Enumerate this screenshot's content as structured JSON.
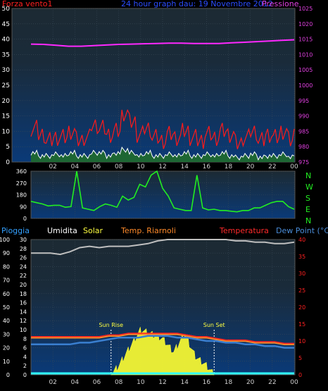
{
  "header": {
    "left_label": "Forza vento1",
    "title": "24 hour graph dau: 19 Novembre 2012",
    "right_label": "Pressione"
  },
  "colors": {
    "wind": "#ff1a1a",
    "gust_fill": "#ff1a1a",
    "avg_wind": "#ffffff",
    "wind_fill": "#1f6b2c",
    "pressure": "#ff28ff",
    "direction": "#22ee22",
    "humidity": "#bfbfbf",
    "temp_red": "#ff2020",
    "temp_orange": "#ff8a2a",
    "dew": "#3a7fd0",
    "solar": "#ffff30",
    "rain": "#30ffff",
    "title": "#2b4dff",
    "pressure_axis": "#e040e0",
    "wind_axis": "#ff2020",
    "dir_axis": "#22ee22",
    "left_axis": "#ffffff",
    "rain_label": "#33a0ff",
    "humidity_label": "#ffffff",
    "solar_label": "#ffff40",
    "temp_rian_label": "#ff8a2a",
    "temp_label": "#ff2a2a",
    "dew_label": "#4a8cd8"
  },
  "x_ticks": [
    "02",
    "04",
    "06",
    "08",
    "10",
    "12",
    "14",
    "16",
    "18",
    "20",
    "22",
    "00"
  ],
  "chart_data": [
    {
      "type": "line",
      "name": "wind-pressure",
      "y_left_label": "Forza vento1",
      "y_left_ticks": [
        "0",
        "5",
        "10",
        "15",
        "20",
        "25",
        "30",
        "35",
        "40",
        "45",
        "50"
      ],
      "y_left_lim": [
        0,
        50
      ],
      "y_right_label": "Pressione",
      "y_right_ticks": [
        "975",
        "980",
        "985",
        "990",
        "995",
        "1000",
        "1005",
        "1010",
        "1015",
        "1020",
        "1025"
      ],
      "y_right_lim": [
        975,
        1025
      ],
      "pressure": [
        1013.4,
        1013.3,
        1013.0,
        1012.7,
        1012.7,
        1012.9,
        1013.1,
        1013.3,
        1013.4,
        1013.5,
        1013.6,
        1013.7,
        1013.7,
        1013.6,
        1013.6,
        1013.6,
        1013.8,
        1014.0,
        1014.2,
        1014.4,
        1014.6,
        1014.8
      ],
      "wind_gust_max": [
        11,
        9,
        7,
        8,
        8,
        10,
        7,
        8,
        12,
        11,
        9,
        10,
        16,
        13,
        9,
        11,
        8,
        7,
        9,
        8,
        10,
        8,
        7,
        9,
        8,
        10,
        9,
        6,
        8,
        10,
        7,
        9,
        8,
        10,
        7,
        9
      ],
      "wind_avg": [
        3,
        2,
        2,
        2.5,
        2,
        3,
        2,
        2,
        3,
        3,
        2,
        3,
        4,
        3,
        2,
        3,
        2,
        2,
        2.5,
        2,
        3,
        2,
        2,
        2.5,
        2,
        3,
        2,
        1.5,
        2,
        2.5,
        1.5,
        2,
        2,
        2.5,
        1.5,
        2
      ]
    },
    {
      "type": "scatter",
      "name": "wind-direction",
      "y_left_ticks": [
        "0",
        "90",
        "180",
        "270",
        "360"
      ],
      "y_left_lim": [
        0,
        360
      ],
      "y_right_labels": [
        "N",
        "W",
        "S",
        "E",
        "N"
      ],
      "direction": [
        130,
        120,
        110,
        95,
        100,
        100,
        85,
        90,
        360,
        80,
        70,
        60,
        90,
        110,
        100,
        85,
        170,
        140,
        160,
        260,
        240,
        330,
        360,
        230,
        170,
        80,
        70,
        60,
        60,
        330,
        80,
        65,
        70,
        60,
        60,
        55,
        50,
        60,
        60,
        80,
        80,
        100,
        120,
        130,
        130,
        90,
        70
      ]
    },
    {
      "type": "area",
      "name": "humidity-temp-solar",
      "legend": [
        "Pioggia",
        "Umidita",
        "Solar",
        "Temp. Riarnoli",
        "Temperatura",
        "Dew Point (°C)"
      ],
      "y_left_ticks": [
        "0",
        "10",
        "20",
        "30",
        "40",
        "50",
        "60",
        "70",
        "80",
        "90",
        "100"
      ],
      "y_left_lim": [
        0,
        100
      ],
      "y_mid_ticks": [
        "0",
        "2",
        "4",
        "6",
        "8",
        "10",
        "12",
        "14",
        "16",
        "18",
        "20",
        "22",
        "24",
        "26",
        "28",
        "30"
      ],
      "y_mid_lim": [
        0,
        30
      ],
      "y_right_ticks": [
        "0",
        "5",
        "10",
        "15",
        "20",
        "25",
        "30",
        "35",
        "40"
      ],
      "y_right_lim": [
        0,
        40
      ],
      "sun_rise_label": "Sun Rise",
      "sun_set_label": "Sun Set",
      "sun_rise_hour": 7.3,
      "sun_set_hour": 16.7,
      "humidity": [
        90,
        90,
        90,
        89,
        91,
        94,
        95,
        94,
        95,
        95,
        95,
        96,
        97,
        99,
        100,
        100,
        100,
        100,
        100,
        100,
        100,
        99,
        99,
        98,
        98,
        97,
        97,
        98
      ],
      "temperature": [
        11,
        11,
        11,
        11,
        11,
        11,
        11,
        11,
        11.5,
        11.5,
        12,
        12,
        12,
        12,
        12,
        12,
        11.5,
        11,
        11,
        10.5,
        10,
        10,
        10,
        9.5,
        9.5,
        9.5,
        9,
        9
      ],
      "dew_point": [
        9,
        9,
        9,
        9,
        9,
        9.5,
        9.5,
        10,
        10.5,
        11,
        11,
        11,
        11.5,
        11.5,
        11.5,
        11,
        11,
        10.5,
        10,
        10,
        9.5,
        9.5,
        9,
        9,
        8.5,
        8.5,
        8,
        8
      ],
      "solar_hours": [
        7.3,
        8,
        9,
        10,
        11,
        12,
        13,
        14,
        15,
        16,
        16.7
      ],
      "solar_values": [
        0,
        2,
        6,
        10,
        9,
        8,
        5,
        9,
        4,
        2,
        0
      ],
      "rain": [
        0,
        0,
        0,
        0,
        0,
        0,
        0,
        0,
        0,
        0,
        0,
        0
      ]
    }
  ]
}
